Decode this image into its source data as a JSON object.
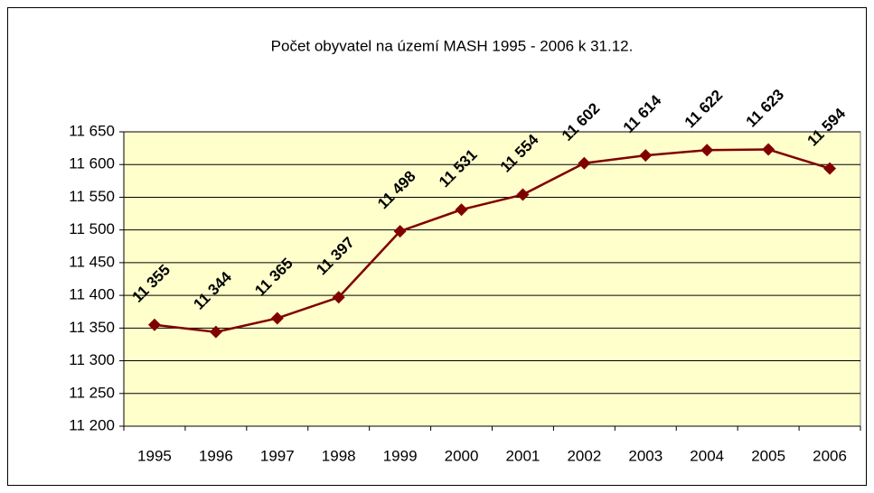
{
  "chart_data": {
    "type": "line",
    "title": "Počet obyvatel na území MASH 1995 - 2006 k 31.12.",
    "categories": [
      "1995",
      "1996",
      "1997",
      "1998",
      "1999",
      "2000",
      "2001",
      "2002",
      "2003",
      "2004",
      "2005",
      "2006"
    ],
    "series": [
      {
        "name": "Počet obyvatel",
        "color": "#800000",
        "values": [
          11355,
          11344,
          11365,
          11397,
          11498,
          11531,
          11554,
          11602,
          11614,
          11622,
          11623,
          11594
        ],
        "value_labels": [
          "11 355",
          "11 344",
          "11 365",
          "11 397",
          "11 498",
          "11 531",
          "11 554",
          "11 602",
          "11 614",
          "11 622",
          "11 623",
          "11 594"
        ]
      }
    ],
    "ylim": [
      11200,
      11650
    ],
    "yticks": [
      {
        "value": 11200,
        "label": "11 200"
      },
      {
        "value": 11250,
        "label": "11 250"
      },
      {
        "value": 11300,
        "label": "11 300"
      },
      {
        "value": 11350,
        "label": "11 350"
      },
      {
        "value": 11400,
        "label": "11 400"
      },
      {
        "value": 11450,
        "label": "11 450"
      },
      {
        "value": 11500,
        "label": "11 500"
      },
      {
        "value": 11550,
        "label": "11 550"
      },
      {
        "value": 11600,
        "label": "11 600"
      },
      {
        "value": 11650,
        "label": "11 650"
      }
    ],
    "grid": true,
    "plot_background": "#ffffcc"
  }
}
